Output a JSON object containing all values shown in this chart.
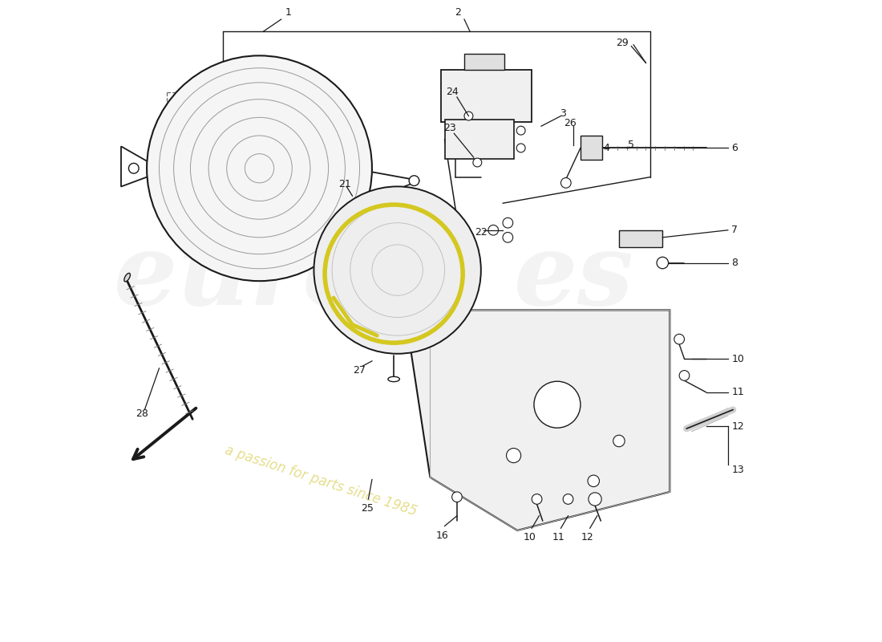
{
  "background_color": "#ffffff",
  "dark": "#1a1a1a",
  "watermark_color": "#cccccc",
  "watermark_alpha": 0.25,
  "accent_color": "#d4c820",
  "xlim": [
    0,
    11
  ],
  "ylim": [
    0,
    8.8
  ]
}
